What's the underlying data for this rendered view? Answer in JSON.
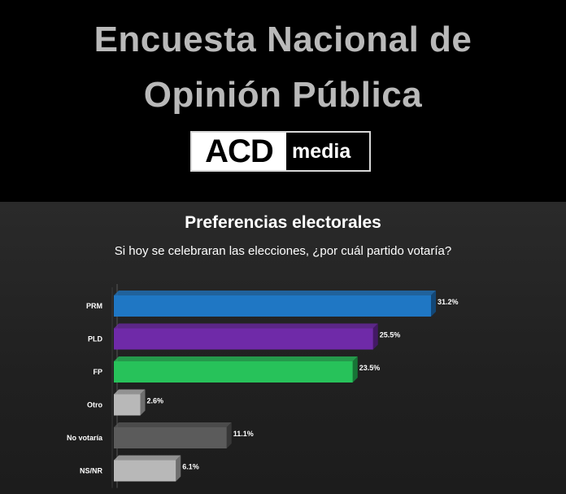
{
  "header": {
    "title_line1": "Encuesta Nacional de",
    "title_line2": "Opinión Pública",
    "logo_acd": "ACD",
    "logo_media": "media"
  },
  "colors": {
    "PRM": "#1f77c4",
    "PLD": "#6f2aa8",
    "FP": "#27c25a",
    "Otro": "#b8b8b8",
    "No votaría": "#5b5b5b",
    "NS/NR": "#b8b8b8"
  },
  "chart_data": {
    "type": "bar",
    "orientation": "horizontal",
    "title": "Preferencias electorales",
    "subtitle": "Si hoy se celebraran las elecciones, ¿por cuál partido votaría?",
    "categories": [
      "PRM",
      "PLD",
      "FP",
      "Otro",
      "No votaría",
      "NS/NR"
    ],
    "values": [
      31.2,
      25.5,
      23.5,
      2.6,
      11.1,
      6.1
    ],
    "value_labels": [
      "31.2%",
      "25.5%",
      "23.5%",
      "2.6%",
      "11.1%",
      "6.1%"
    ],
    "xlim": [
      0,
      31.2
    ],
    "grid": false,
    "legend": "none"
  }
}
